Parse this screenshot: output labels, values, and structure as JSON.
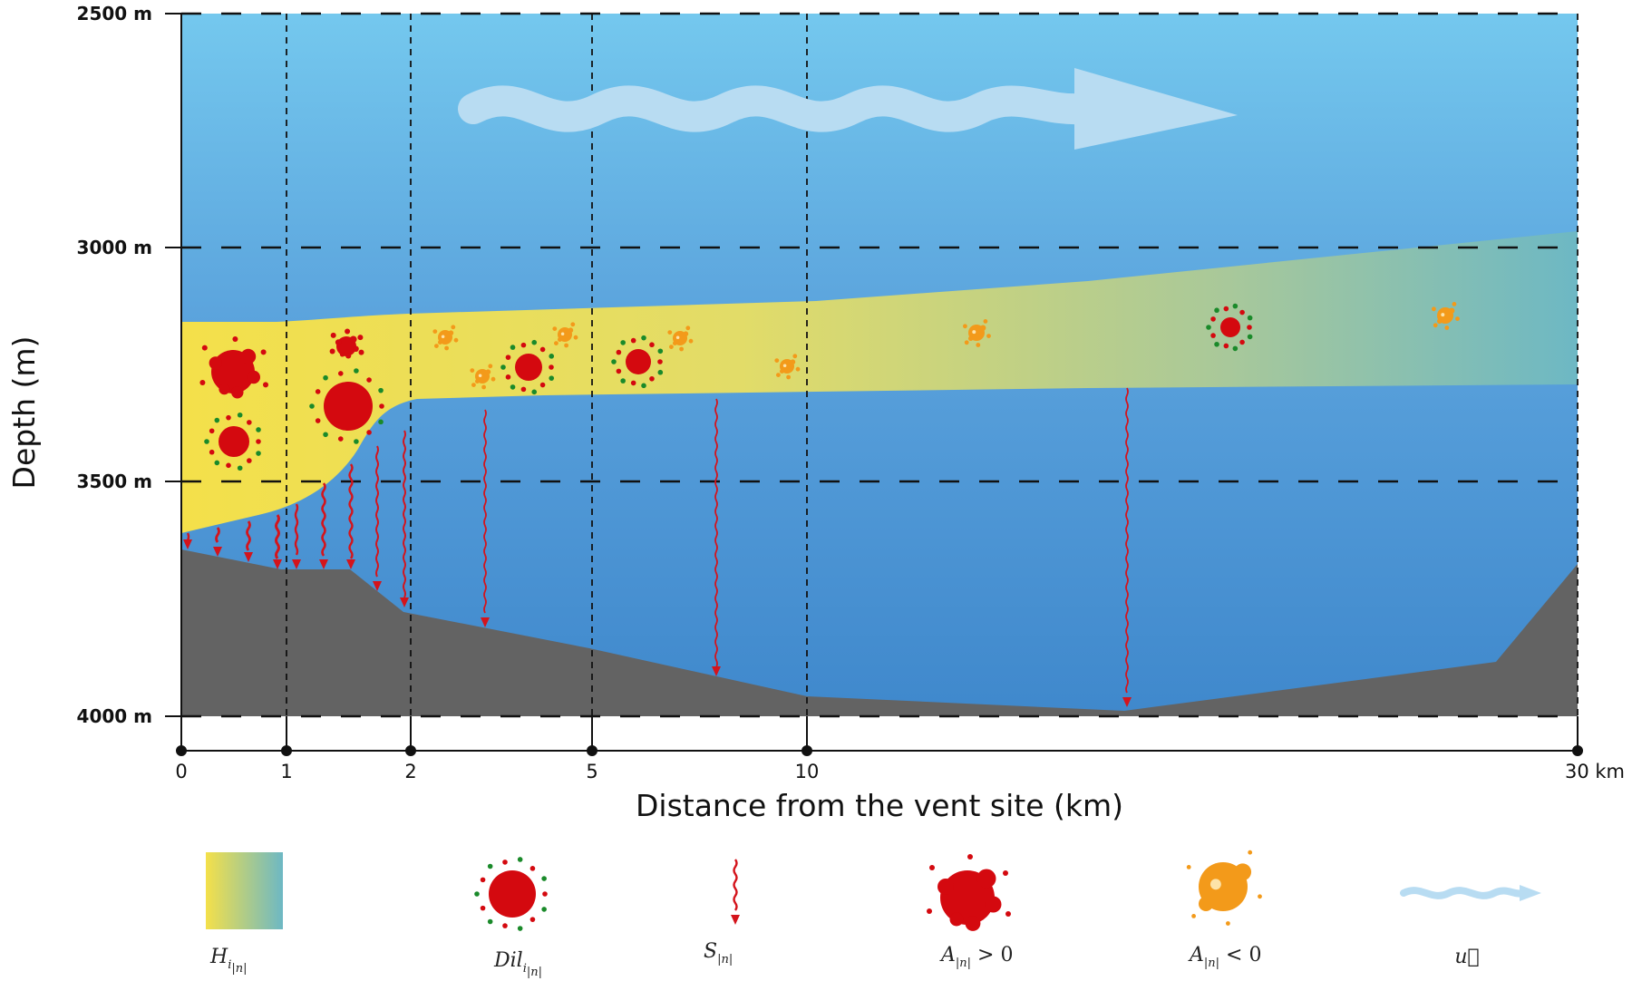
{
  "axes": {
    "y_title": "Depth (m)",
    "x_title": "Distance from the vent site (km)",
    "depth_ticks": [
      "2500 m",
      "3000 m",
      "3500 m",
      "4000 m"
    ],
    "distance_ticks": [
      "0",
      "1",
      "2",
      "5",
      "10",
      "30 km"
    ]
  },
  "legend": {
    "hydrothermal": {
      "main": "H",
      "sub": "i",
      "sub2": "|n|"
    },
    "dilution": {
      "main": "Dil",
      "sub": "i",
      "sub2": "|n|"
    },
    "sinking": {
      "main": "S",
      "sub": "|n|",
      "rest": ""
    },
    "aggregation": {
      "main": "A",
      "sub": "|n|",
      "rest": " > 0"
    },
    "disaggregation": {
      "main": "A",
      "sub": "|n|",
      "rest": " < 0"
    },
    "current": {
      "main": "u⃗"
    }
  },
  "colors": {
    "sea_top": "#74c8ee",
    "sea_bottom": "#3f88cc",
    "seafloor": "#636363",
    "plume_near": "#f4e04a",
    "plume_far": "#6db8c4",
    "particle_red": "#d4090f",
    "particle_green": "#1a8a2a",
    "particle_orange": "#f39a1a",
    "sinking_arrow": "#d4141c",
    "current_arrow": "#b8dcf2"
  }
}
